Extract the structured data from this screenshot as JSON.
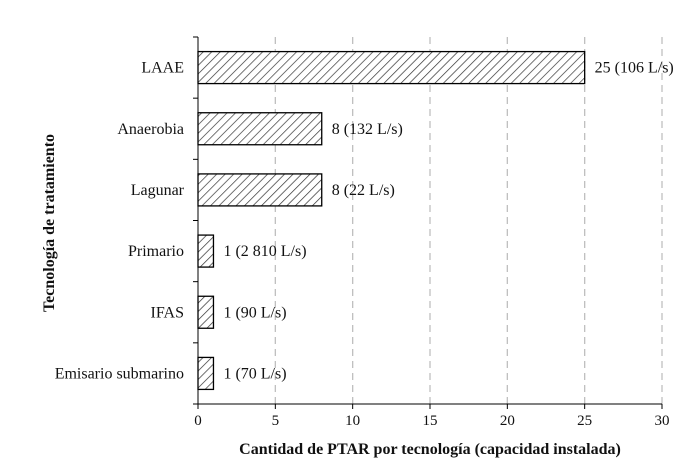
{
  "chart_data": {
    "type": "bar",
    "orientation": "horizontal",
    "title": "",
    "xlabel": "Cantidad de PTAR por tecnología (capacidad instalada)",
    "ylabel": "Tecnología de tratamiento",
    "categories": [
      "LAAE",
      "Anaerobia",
      "Lagunar",
      "Primario",
      "IFAS",
      "Emisario submarino"
    ],
    "values": [
      25,
      8,
      8,
      1,
      1,
      1
    ],
    "data_labels": [
      "25 (106 L/s)",
      "8 (132 L/s)",
      "8 (22 L/s)",
      "1 (2 810 L/s)",
      "1 (90 L/s)",
      "1 (70 L/s)"
    ],
    "xlim": [
      0,
      30
    ],
    "xticks": [
      "0",
      "5",
      "10",
      "15",
      "20",
      "25",
      "30"
    ],
    "grid": "vertical dashed",
    "bar_fill": "diagonal hatch",
    "colors": {
      "bar_stroke": "#000000",
      "hatch": "#333333",
      "grid": "#bfbfbf"
    }
  }
}
